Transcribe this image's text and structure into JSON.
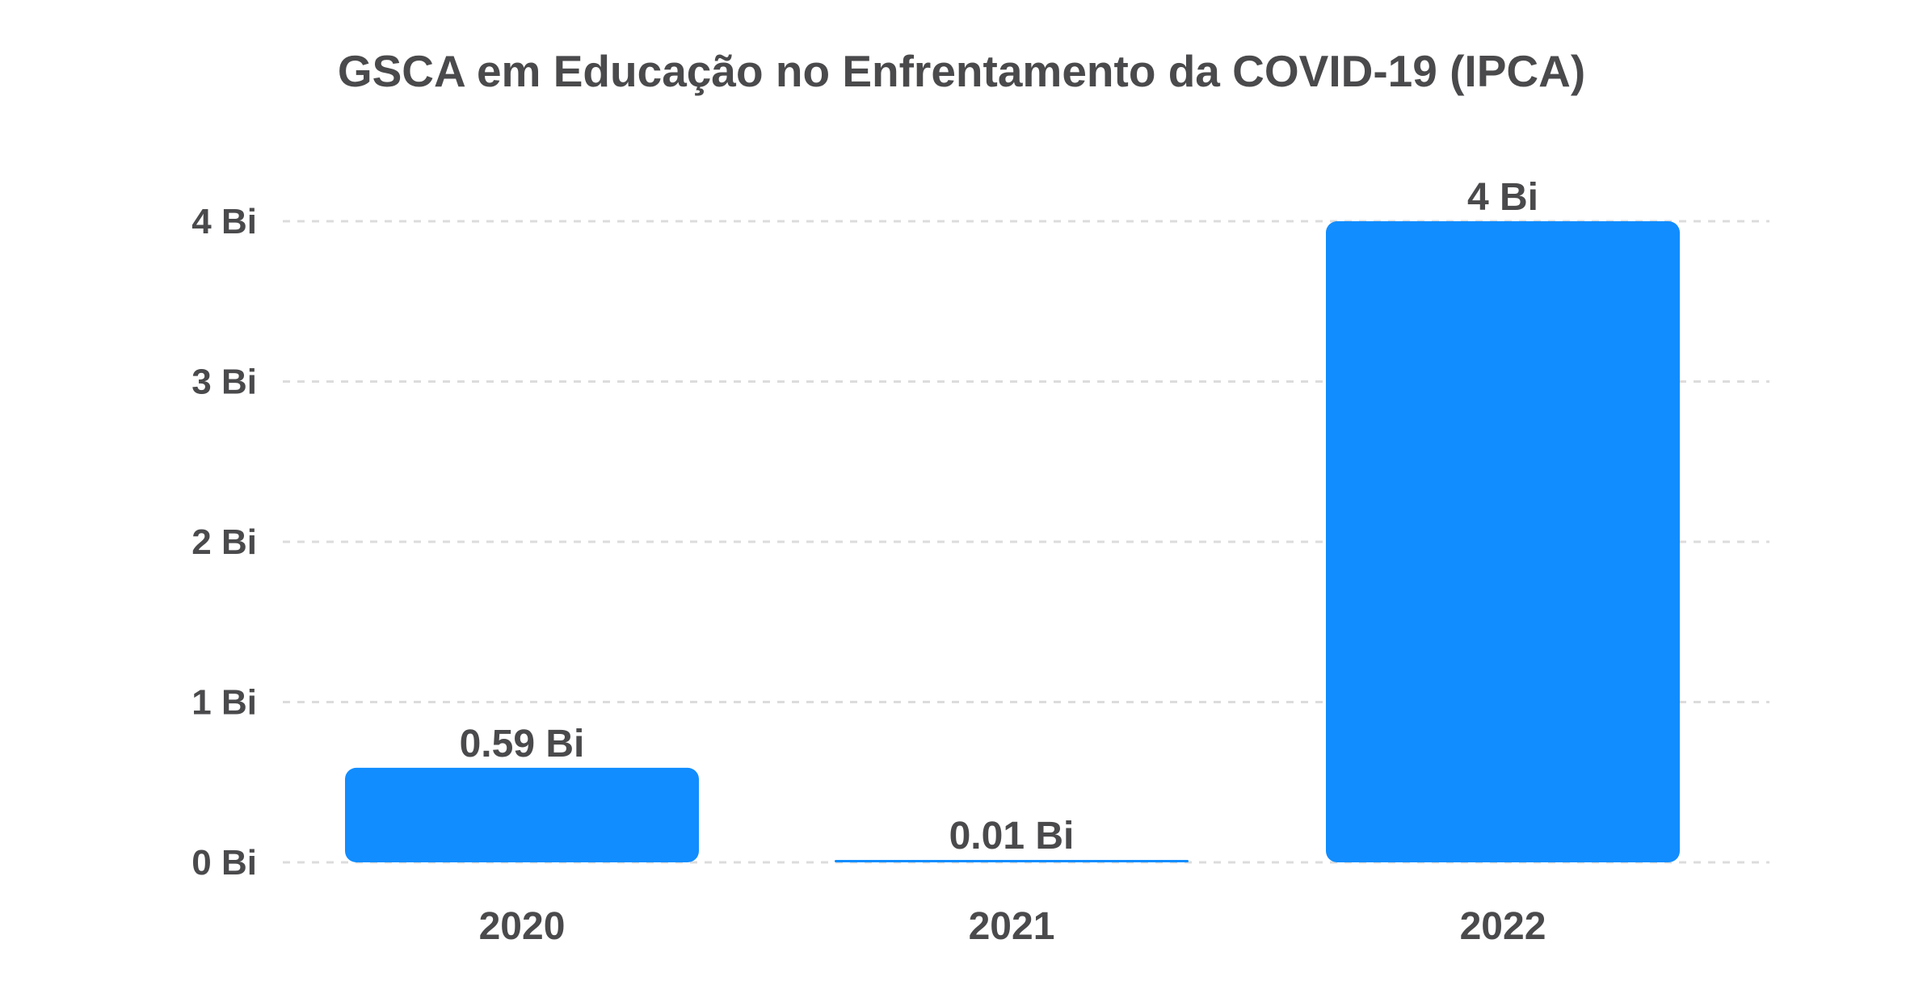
{
  "chart_data": {
    "type": "bar",
    "title": "GSCA em Educação no Enfrentamento da COVID-19  (IPCA)",
    "categories": [
      "2020",
      "2021",
      "2022"
    ],
    "values": [
      0.59,
      0.01,
      4
    ],
    "data_labels": [
      "0.59 Bi",
      "0.01 Bi",
      "4 Bi"
    ],
    "y_ticks": [
      0,
      1,
      2,
      3,
      4
    ],
    "y_tick_labels": [
      "0 Bi",
      "1 Bi",
      "2 Bi",
      "3 Bi",
      "4 Bi"
    ],
    "ylim": [
      0,
      4
    ],
    "xlabel": "",
    "ylabel": "",
    "grid": true,
    "legend": "none",
    "bar_color": "#118dff",
    "text_color": "#4a4a4c",
    "grid_color": "#dcdcdc"
  }
}
